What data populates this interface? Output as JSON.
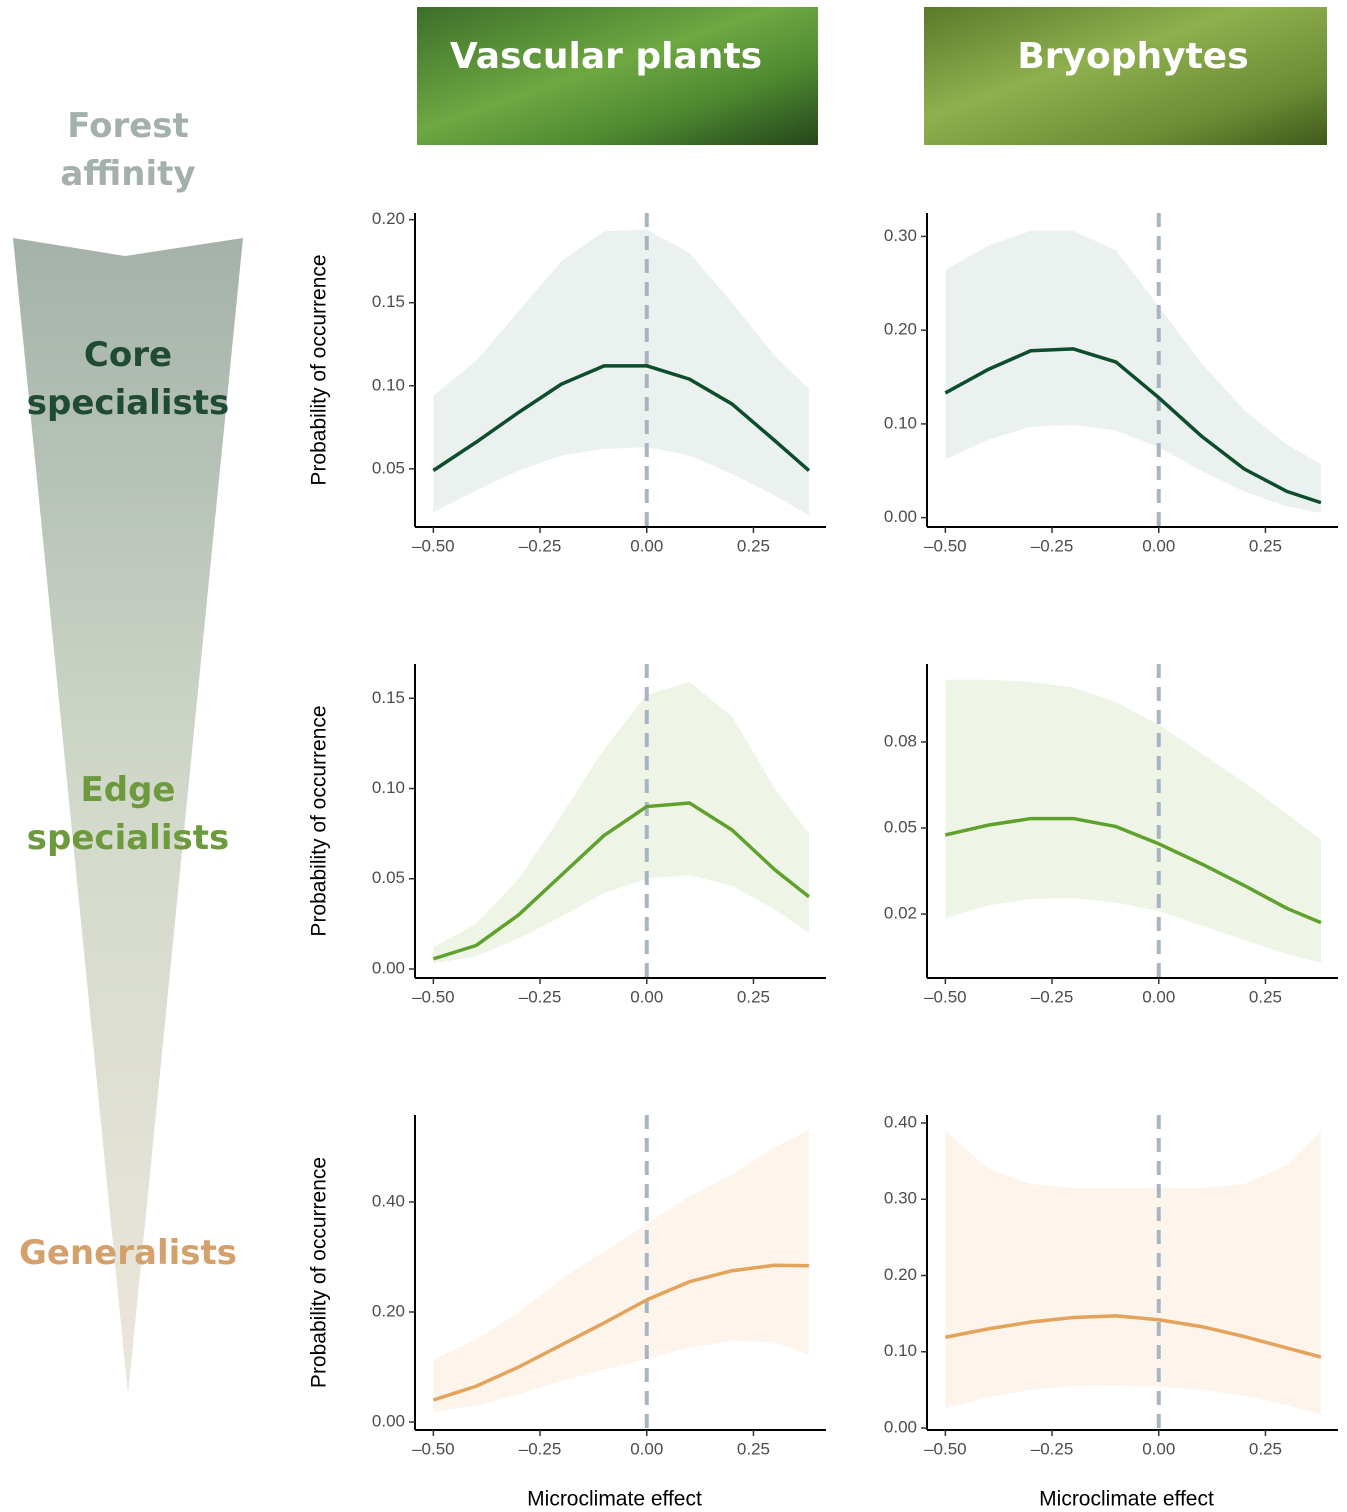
{
  "column_titles": [
    "Vascular plants",
    "Bryophytes"
  ],
  "affinity": {
    "title": "Forest affinity",
    "levels": [
      "Core specialists",
      "Edge specialists",
      "Generalists"
    ]
  },
  "chart_data": [
    {
      "type": "line",
      "ylabel": "Probability of occurrence",
      "color": "#0d4d2c",
      "band_color": "#eaf1ee",
      "vline": 0,
      "x": [
        -0.5,
        -0.4,
        -0.3,
        -0.2,
        -0.1,
        0,
        0.1,
        0.2,
        0.3,
        0.38
      ],
      "values": [
        0.049,
        0.066,
        0.084,
        0.101,
        0.112,
        0.112,
        0.104,
        0.089,
        0.067,
        0.049
      ],
      "upper": [
        0.094,
        0.115,
        0.145,
        0.175,
        0.193,
        0.194,
        0.18,
        0.15,
        0.118,
        0.098
      ],
      "lower": [
        0.024,
        0.037,
        0.049,
        0.058,
        0.062,
        0.063,
        0.058,
        0.047,
        0.034,
        0.022
      ],
      "xlim": [
        -0.543,
        0.42
      ],
      "ylim": [
        0.015,
        0.204
      ],
      "xticks": [
        {
          "value": -0.5,
          "label": "–0.50"
        },
        {
          "value": -0.25,
          "label": "–0.25"
        },
        {
          "value": 0,
          "label": "0.00"
        },
        {
          "value": 0.25,
          "label": "0.25"
        }
      ],
      "yticks": [
        {
          "value": 0.05,
          "label": "0.05"
        },
        {
          "value": 0.1,
          "label": "0.10"
        },
        {
          "value": 0.15,
          "label": "0.15"
        },
        {
          "value": 0.2,
          "label": "0.20"
        }
      ]
    },
    {
      "type": "line",
      "color": "#0d4d2c",
      "band_color": "#eaf1ee",
      "vline": 0,
      "x": [
        -0.5,
        -0.4,
        -0.3,
        -0.2,
        -0.1,
        0,
        0.1,
        0.2,
        0.3,
        0.38
      ],
      "values": [
        0.133,
        0.158,
        0.178,
        0.18,
        0.166,
        0.128,
        0.087,
        0.052,
        0.028,
        0.016
      ],
      "upper": [
        0.264,
        0.29,
        0.306,
        0.306,
        0.285,
        0.225,
        0.165,
        0.115,
        0.078,
        0.057
      ],
      "lower": [
        0.062,
        0.083,
        0.097,
        0.099,
        0.093,
        0.075,
        0.05,
        0.028,
        0.012,
        0.005
      ],
      "xlim": [
        -0.543,
        0.42
      ],
      "ylim": [
        -0.01,
        0.325
      ],
      "xticks": [
        {
          "value": -0.5,
          "label": "–0.50"
        },
        {
          "value": -0.25,
          "label": "–0.25"
        },
        {
          "value": 0,
          "label": "0.00"
        },
        {
          "value": 0.25,
          "label": "0.25"
        }
      ],
      "yticks": [
        {
          "value": 0,
          "label": "0.00"
        },
        {
          "value": 0.1,
          "label": "0.10"
        },
        {
          "value": 0.2,
          "label": "0.20"
        },
        {
          "value": 0.3,
          "label": "0.30"
        }
      ]
    },
    {
      "type": "line",
      "ylabel": "Probability of occurrence",
      "color": "#5fa12c",
      "band_color": "#eef5e7",
      "vline": 0,
      "x": [
        -0.5,
        -0.4,
        -0.3,
        -0.2,
        -0.1,
        0,
        0.1,
        0.2,
        0.3,
        0.38
      ],
      "values": [
        0.0056,
        0.013,
        0.03,
        0.052,
        0.074,
        0.09,
        0.092,
        0.077,
        0.055,
        0.04
      ],
      "upper": [
        0.012,
        0.025,
        0.05,
        0.085,
        0.122,
        0.152,
        0.159,
        0.14,
        0.1,
        0.075
      ],
      "lower": [
        0.003,
        0.007,
        0.017,
        0.029,
        0.042,
        0.05,
        0.052,
        0.046,
        0.033,
        0.02
      ],
      "xlim": [
        -0.543,
        0.42
      ],
      "ylim": [
        -0.005,
        0.169
      ],
      "xticks": [
        {
          "value": -0.5,
          "label": "–0.50"
        },
        {
          "value": -0.25,
          "label": "–0.25"
        },
        {
          "value": 0,
          "label": "0.00"
        },
        {
          "value": 0.25,
          "label": "0.25"
        }
      ],
      "yticks": [
        {
          "value": 0,
          "label": "0.00"
        },
        {
          "value": 0.05,
          "label": "0.05"
        },
        {
          "value": 0.1,
          "label": "0.10"
        },
        {
          "value": 0.15,
          "label": "0.15"
        }
      ]
    },
    {
      "type": "line",
      "color": "#5fa12c",
      "band_color": "#eef5e7",
      "vline": 0,
      "x": [
        -0.5,
        -0.4,
        -0.3,
        -0.2,
        -0.1,
        0,
        0.1,
        0.2,
        0.3,
        0.38
      ],
      "values": [
        0.0476,
        0.051,
        0.0533,
        0.0533,
        0.0505,
        0.0445,
        0.0375,
        0.03,
        0.022,
        0.017
      ],
      "upper": [
        0.1017,
        0.1017,
        0.101,
        0.099,
        0.094,
        0.086,
        0.076,
        0.066,
        0.055,
        0.046
      ],
      "lower": [
        0.0186,
        0.023,
        0.0253,
        0.0255,
        0.024,
        0.021,
        0.016,
        0.011,
        0.006,
        0.003
      ],
      "xlim": [
        -0.543,
        0.42
      ],
      "ylim": [
        -0.0023,
        0.1072
      ],
      "xticks": [
        {
          "value": -0.5,
          "label": "–0.50"
        },
        {
          "value": -0.25,
          "label": "–0.25"
        },
        {
          "value": 0,
          "label": "0.00"
        },
        {
          "value": 0.25,
          "label": "0.25"
        }
      ],
      "yticks": [
        {
          "value": 0.02,
          "label": "0.02"
        },
        {
          "value": 0.05,
          "label": "0.05"
        },
        {
          "value": 0.08,
          "label": "0.08"
        }
      ]
    },
    {
      "type": "line",
      "ylabel": "Probability of occurrence",
      "xlabel": "Microclimate effect",
      "color": "#e4a35a",
      "band_color": "#fdf4ec",
      "vline": 0,
      "x": [
        -0.5,
        -0.4,
        -0.3,
        -0.2,
        -0.1,
        0,
        0.1,
        0.2,
        0.3,
        0.38
      ],
      "values": [
        0.04,
        0.065,
        0.1,
        0.14,
        0.18,
        0.222,
        0.255,
        0.275,
        0.285,
        0.284
      ],
      "upper": [
        0.113,
        0.15,
        0.2,
        0.26,
        0.31,
        0.36,
        0.41,
        0.45,
        0.5,
        0.531
      ],
      "lower": [
        0.018,
        0.03,
        0.05,
        0.075,
        0.095,
        0.115,
        0.135,
        0.148,
        0.145,
        0.122
      ],
      "xlim": [
        -0.543,
        0.42
      ],
      "ylim": [
        -0.0145,
        0.558
      ],
      "xticks": [
        {
          "value": -0.5,
          "label": "–0.50"
        },
        {
          "value": -0.25,
          "label": "–0.25"
        },
        {
          "value": 0,
          "label": "0.00"
        },
        {
          "value": 0.25,
          "label": "0.25"
        }
      ],
      "yticks": [
        {
          "value": 0,
          "label": "0.00"
        },
        {
          "value": 0.2,
          "label": "0.20"
        },
        {
          "value": 0.4,
          "label": "0.40"
        }
      ]
    },
    {
      "type": "line",
      "xlabel": "Microclimate effect",
      "color": "#e4a35a",
      "band_color": "#fdf4ec",
      "vline": 0,
      "x": [
        -0.5,
        -0.4,
        -0.3,
        -0.2,
        -0.1,
        0,
        0.1,
        0.2,
        0.3,
        0.38
      ],
      "values": [
        0.119,
        0.13,
        0.139,
        0.145,
        0.147,
        0.142,
        0.133,
        0.12,
        0.105,
        0.093
      ],
      "upper": [
        0.39,
        0.34,
        0.32,
        0.315,
        0.315,
        0.315,
        0.315,
        0.32,
        0.345,
        0.39
      ],
      "lower": [
        0.026,
        0.04,
        0.05,
        0.055,
        0.056,
        0.054,
        0.05,
        0.042,
        0.03,
        0.018
      ],
      "xlim": [
        -0.543,
        0.42
      ],
      "ylim": [
        -0.0026,
        0.4105
      ],
      "xticks": [
        {
          "value": -0.5,
          "label": "–0.50"
        },
        {
          "value": -0.25,
          "label": "–0.25"
        },
        {
          "value": 0,
          "label": "0.00"
        },
        {
          "value": 0.25,
          "label": "0.25"
        }
      ],
      "yticks": [
        {
          "value": 0,
          "label": "0.00"
        },
        {
          "value": 0.1,
          "label": "0.10"
        },
        {
          "value": 0.2,
          "label": "0.20"
        },
        {
          "value": 0.3,
          "label": "0.30"
        },
        {
          "value": 0.4,
          "label": "0.40"
        }
      ]
    }
  ]
}
